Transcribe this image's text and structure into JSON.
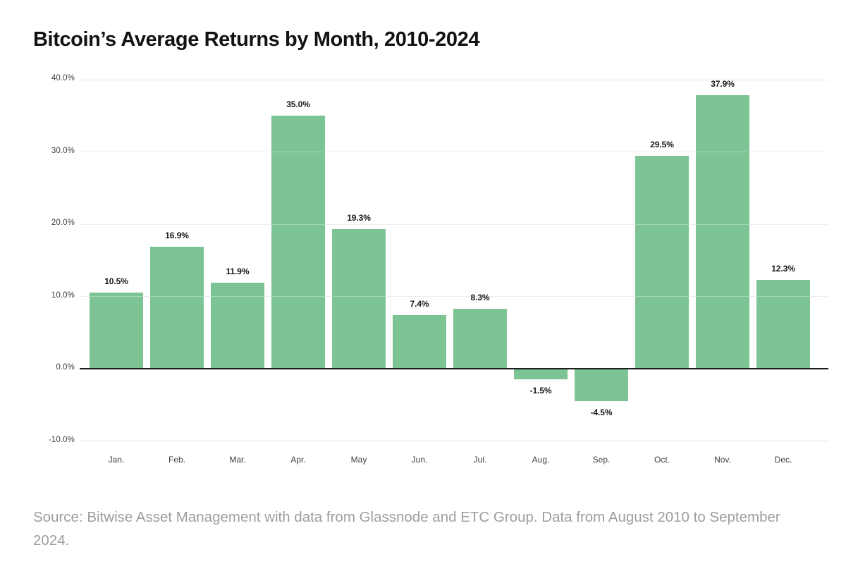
{
  "title": "Bitcoin’s Average Returns by Month, 2010-2024",
  "source": "Source: Bitwise Asset Management with data from Glassnode and ETC Group. Data from August 2010 to September 2024.",
  "chart_data": {
    "type": "bar",
    "title": "Bitcoin’s Average Returns by Month, 2010-2024",
    "categories": [
      "Jan.",
      "Feb.",
      "Mar.",
      "Apr.",
      "May",
      "Jun.",
      "Jul.",
      "Aug.",
      "Sep.",
      "Oct.",
      "Nov.",
      "Dec."
    ],
    "values": [
      10.5,
      16.9,
      11.9,
      35.0,
      19.3,
      7.4,
      8.3,
      -1.5,
      -4.5,
      29.5,
      37.9,
      12.3
    ],
    "value_labels": [
      "10.5%",
      "16.9%",
      "11.9%",
      "35.0%",
      "19.3%",
      "7.4%",
      "8.3%",
      "-1.5%",
      "-4.5%",
      "29.5%",
      "37.9%",
      "12.3%"
    ],
    "y_ticks": [
      40,
      30,
      20,
      10,
      0,
      -10
    ],
    "y_tick_labels": [
      "40.0%",
      "30.0%",
      "20.0%",
      "10.0%",
      "0.0%",
      "-10.0%"
    ],
    "ylim": [
      -10,
      40
    ],
    "xlabel": "",
    "ylabel": "",
    "grid": true,
    "legend_position": "none",
    "bar_color": "#7dc495",
    "zero_line_color": "#1c1e21",
    "gridline_color": "#e6e6e6"
  }
}
